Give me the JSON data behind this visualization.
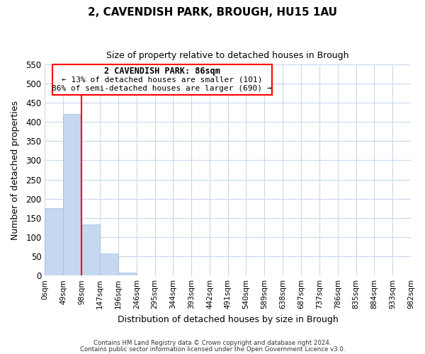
{
  "title": "2, CAVENDISH PARK, BROUGH, HU15 1AU",
  "subtitle": "Size of property relative to detached houses in Brough",
  "xlabel": "Distribution of detached houses by size in Brough",
  "ylabel": "Number of detached properties",
  "bin_edges": [
    0,
    49,
    98,
    147,
    196,
    246,
    295,
    344,
    393,
    442,
    491,
    540,
    589,
    638,
    687,
    737,
    786,
    835,
    884,
    933,
    982
  ],
  "bin_labels": [
    "0sqm",
    "49sqm",
    "98sqm",
    "147sqm",
    "196sqm",
    "246sqm",
    "295sqm",
    "344sqm",
    "393sqm",
    "442sqm",
    "491sqm",
    "540sqm",
    "589sqm",
    "638sqm",
    "687sqm",
    "737sqm",
    "786sqm",
    "835sqm",
    "884sqm",
    "933sqm",
    "982sqm"
  ],
  "counts": [
    175,
    420,
    133,
    57,
    7,
    1,
    0,
    0,
    0,
    1,
    0,
    0,
    0,
    0,
    0,
    0,
    0,
    0,
    0,
    1
  ],
  "bar_color": "#c5d8f0",
  "bar_edge_color": "#a0bcd8",
  "property_line_x": 98,
  "property_line_color": "red",
  "ylim": [
    0,
    550
  ],
  "yticks": [
    0,
    50,
    100,
    150,
    200,
    250,
    300,
    350,
    400,
    450,
    500,
    550
  ],
  "annotation_title": "2 CAVENDISH PARK: 86sqm",
  "annotation_line1": "← 13% of detached houses are smaller (101)",
  "annotation_line2": "86% of semi-detached houses are larger (690) →",
  "footer1": "Contains HM Land Registry data © Crown copyright and database right 2024.",
  "footer2": "Contains public sector information licensed under the Open Government Licence v3.0.",
  "background_color": "#ffffff",
  "grid_color": "#c8d8ee"
}
